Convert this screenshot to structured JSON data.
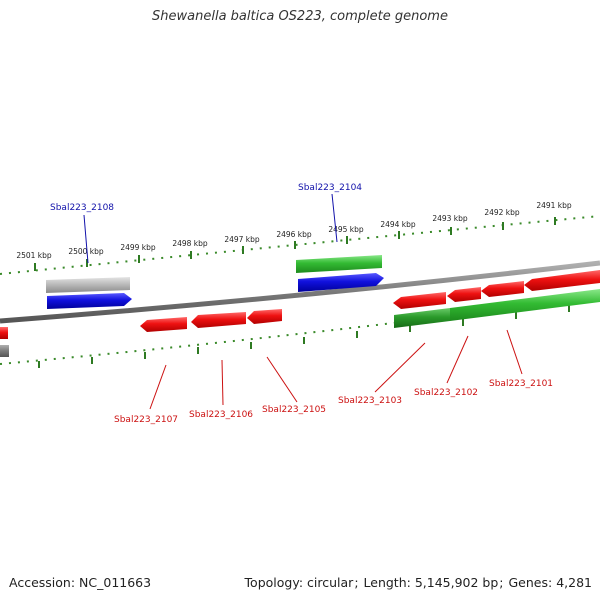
{
  "title": "Shewanella baltica OS223, complete genome",
  "footer": {
    "accession_label": "Accession:",
    "accession": "NC_011663",
    "topology_label": "Topology:",
    "topology": "circular",
    "length_label": "Length:",
    "length": "5,145,902 bp",
    "genes_label": "Genes:",
    "genes": "4,281"
  },
  "colors": {
    "backbone": "#7a7a7a",
    "tick": "#3a8a2a",
    "blue_gene": "#1111dd",
    "gray_gene": "#bbbbbb",
    "green_gene": "#33bb33",
    "dark_green_gene": "#2a9a2a",
    "red_gene": "#ee1111",
    "red_label": "#cc1111",
    "blue_label": "#1111aa"
  },
  "scale": {
    "labels": [
      "2501 kbp",
      "2500 kbp",
      "2499 kbp",
      "2498 kbp",
      "2497 kbp",
      "2496 kbp",
      "2495 kbp",
      "2494 kbp",
      "2493 kbp",
      "2492 kbp",
      "2491 kbp"
    ]
  },
  "genes_shown": [
    {
      "id": "Sbal223_2108",
      "color": "gray_gene",
      "strand": "top-outer"
    },
    {
      "id": "",
      "color": "blue_gene",
      "strand": "top-inner"
    },
    {
      "id": "Sbal223_2104",
      "color": "green_gene",
      "strand": "top-outer"
    },
    {
      "id": "",
      "color": "blue_gene",
      "strand": "top-inner"
    },
    {
      "id": "Sbal223_2107",
      "color": "red_gene",
      "strand": "bottom"
    },
    {
      "id": "Sbal223_2106",
      "color": "red_gene",
      "strand": "bottom"
    },
    {
      "id": "Sbal223_2105",
      "color": "red_gene",
      "strand": "bottom"
    },
    {
      "id": "Sbal223_2103",
      "color": "dark_green_gene",
      "strand": "bottom"
    },
    {
      "id": "Sbal223_2102",
      "color": "red_gene",
      "strand": "bottom"
    },
    {
      "id": "Sbal223_2101",
      "color": "red_gene",
      "strand": "bottom"
    }
  ]
}
